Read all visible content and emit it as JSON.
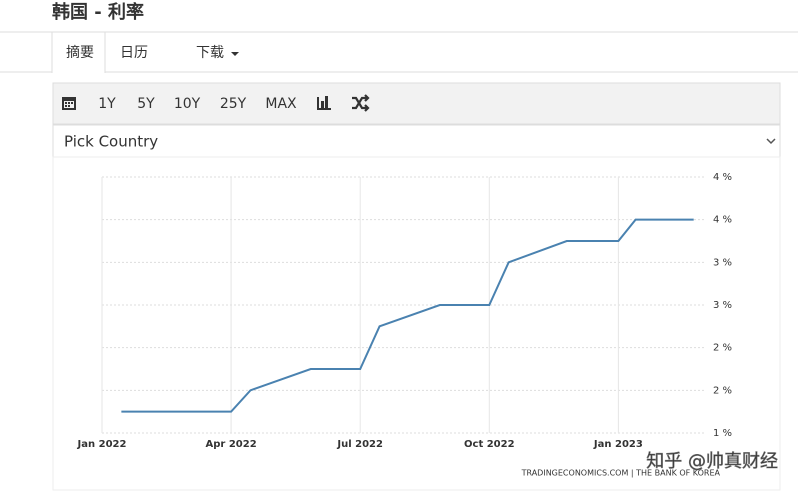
{
  "header": {
    "title": "韩国 - 利率"
  },
  "tabs": [
    "摘要",
    "日历",
    "下载"
  ],
  "toolbar": {
    "buttons": [
      "1Y",
      "5Y",
      "10Y",
      "25Y",
      "MAX"
    ]
  },
  "dropdown": {
    "placeholder": "Pick Country"
  },
  "chart_data": {
    "type": "line",
    "x": [
      0.45,
      3,
      3.45,
      4.85,
      6,
      6.45,
      7.85,
      9,
      9.45,
      10.8,
      12,
      12.4,
      13.75
    ],
    "values": [
      1.25,
      1.25,
      1.5,
      1.75,
      1.75,
      2.25,
      2.5,
      2.5,
      3,
      3.25,
      3.25,
      3.5,
      3.5
    ],
    "color": "#4a82b0",
    "xlim": [
      0,
      13.85
    ],
    "xticks": [
      {
        "value": 0,
        "label": "Jan 2022"
      },
      {
        "value": 3,
        "label": "Apr 2022"
      },
      {
        "value": 6,
        "label": "Jul 2022"
      },
      {
        "value": 9,
        "label": "Oct 2022"
      },
      {
        "value": 12,
        "label": "Jan 2023"
      }
    ],
    "ylim": [
      1,
      4
    ],
    "yticks": [
      {
        "value": 1,
        "label": "1 %"
      },
      {
        "value": 1.5,
        "label": "2 %"
      },
      {
        "value": 2,
        "label": "2 %"
      },
      {
        "value": 2.5,
        "label": "3 %"
      },
      {
        "value": 3,
        "label": "3 %"
      },
      {
        "value": 3.5,
        "label": "4 %"
      },
      {
        "value": 4,
        "label": "4 %"
      }
    ],
    "grid": true,
    "source": "TRADINGECONOMICS.COM | THE BANK OF KOREA"
  },
  "watermark": "知乎 @帅真财经"
}
